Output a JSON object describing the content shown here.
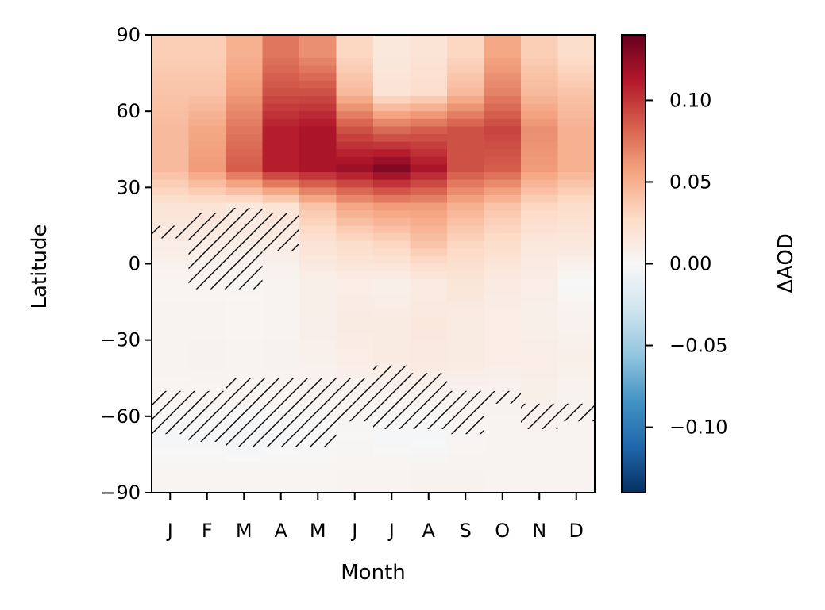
{
  "chart_data": {
    "type": "heatmap",
    "title": "",
    "xlabel": "Month",
    "ylabel": "Latitude",
    "x_categories": [
      "J",
      "F",
      "M",
      "A",
      "M",
      "J",
      "J",
      "A",
      "S",
      "O",
      "N",
      "D"
    ],
    "y_ticks": [
      90,
      60,
      30,
      0,
      -30,
      -60,
      -90
    ],
    "y_tick_labels": [
      "90",
      "60",
      "30",
      "0",
      "−30",
      "−60",
      "−90"
    ],
    "ylim": [
      -90,
      90
    ],
    "y_band_edges": [
      90,
      75,
      60,
      45,
      30,
      15,
      0,
      -15,
      -30,
      -45,
      -60,
      -75,
      -90
    ],
    "values": [
      [
        0.035,
        0.035,
        0.05,
        0.075,
        0.065,
        0.03,
        0.015,
        0.02,
        0.03,
        0.055,
        0.035,
        0.025
      ],
      [
        0.04,
        0.04,
        0.06,
        0.09,
        0.09,
        0.045,
        0.02,
        0.025,
        0.045,
        0.07,
        0.045,
        0.04
      ],
      [
        0.045,
        0.055,
        0.075,
        0.11,
        0.115,
        0.09,
        0.08,
        0.085,
        0.09,
        0.095,
        0.065,
        0.05
      ],
      [
        0.045,
        0.06,
        0.085,
        0.11,
        0.115,
        0.12,
        0.13,
        0.115,
        0.09,
        0.085,
        0.06,
        0.05
      ],
      [
        0.02,
        0.02,
        0.015,
        0.02,
        0.04,
        0.055,
        0.06,
        0.06,
        0.05,
        0.04,
        0.03,
        0.025
      ],
      [
        0.01,
        0.01,
        0.01,
        0.01,
        0.02,
        0.025,
        0.03,
        0.04,
        0.03,
        0.025,
        0.015,
        0.015
      ],
      [
        0.003,
        0.003,
        0.002,
        0.004,
        0.008,
        0.01,
        0.008,
        0.012,
        0.018,
        0.012,
        0.01,
        0.0
      ],
      [
        0.004,
        0.004,
        0.003,
        0.004,
        0.008,
        0.012,
        0.012,
        0.015,
        0.012,
        0.01,
        0.008,
        0.006
      ],
      [
        0.004,
        0.005,
        0.004,
        0.005,
        0.007,
        0.01,
        0.012,
        0.014,
        0.012,
        0.01,
        0.01,
        0.008
      ],
      [
        0.003,
        0.003,
        0.003,
        0.003,
        0.004,
        0.004,
        0.004,
        0.004,
        0.005,
        0.005,
        0.008,
        0.005
      ],
      [
        -0.002,
        -0.002,
        -0.004,
        -0.002,
        -0.001,
        0.001,
        -0.002,
        -0.002,
        0.002,
        0.004,
        0.004,
        0.004
      ],
      [
        0.003,
        0.003,
        0.003,
        0.003,
        0.003,
        0.004,
        0.004,
        0.005,
        0.005,
        0.004,
        0.004,
        0.004
      ]
    ],
    "hatched_regions": [
      {
        "month": "J",
        "index": 0,
        "lat": [
          10,
          15
        ]
      },
      {
        "month": "F",
        "index": 1,
        "lat": [
          -10,
          20
        ]
      },
      {
        "month": "M",
        "index": 2,
        "lat": [
          -10,
          22
        ]
      },
      {
        "month": "A",
        "index": 3,
        "lat": [
          5,
          20
        ]
      },
      {
        "month": "J",
        "index": 0,
        "lat": [
          -67,
          -50
        ]
      },
      {
        "month": "F",
        "index": 1,
        "lat": [
          -70,
          -50
        ]
      },
      {
        "month": "M",
        "index": 2,
        "lat": [
          -72,
          -45
        ]
      },
      {
        "month": "A",
        "index": 3,
        "lat": [
          -72,
          -45
        ]
      },
      {
        "month": "M",
        "index": 4,
        "lat": [
          -72,
          -45
        ]
      },
      {
        "month": "J",
        "index": 5,
        "lat": [
          -62,
          -45
        ]
      },
      {
        "month": "J",
        "index": 6,
        "lat": [
          -65,
          -40
        ]
      },
      {
        "month": "A",
        "index": 7,
        "lat": [
          -65,
          -43
        ]
      },
      {
        "month": "S",
        "index": 8,
        "lat": [
          -67,
          -50
        ]
      },
      {
        "month": "O",
        "index": 9,
        "lat": [
          -55,
          -50
        ]
      },
      {
        "month": "N",
        "index": 10,
        "lat": [
          -65,
          -55
        ]
      },
      {
        "month": "D",
        "index": 11,
        "lat": [
          -62,
          -55
        ]
      }
    ],
    "colorbar": {
      "label": "ΔAOD",
      "colormap": "RdBu_r",
      "range": [
        -0.14,
        0.14
      ],
      "ticks": [
        0.1,
        0.05,
        0.0,
        -0.05,
        -0.1
      ],
      "tick_labels": [
        "0.10",
        "0.05",
        "0.00",
        "−0.05",
        "−0.10"
      ]
    },
    "grid": false,
    "legend": "none"
  }
}
